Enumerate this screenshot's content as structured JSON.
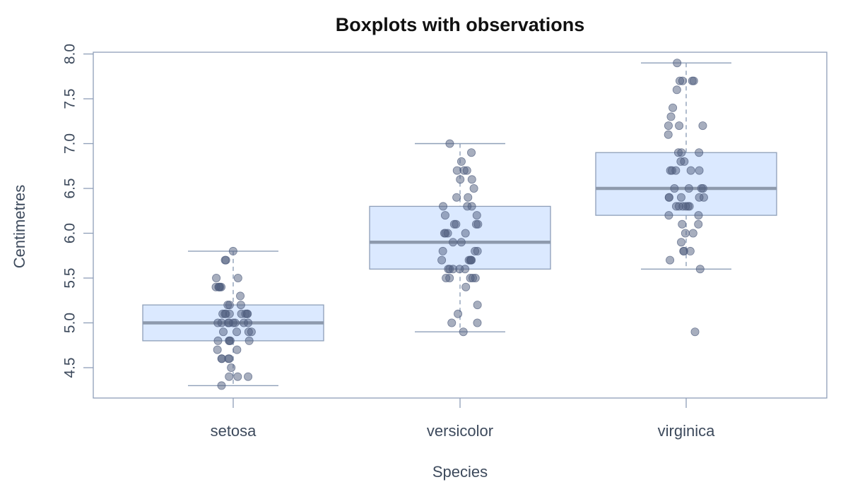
{
  "chart_data": {
    "type": "box",
    "title": "Boxplots with observations",
    "xlabel": "Species",
    "ylabel": "Centimetres",
    "categories": [
      "setosa",
      "versicolor",
      "virginica"
    ],
    "ylim": [
      4.15,
      8.05
    ],
    "yticks": [
      4.5,
      5.0,
      5.5,
      6.0,
      6.5,
      7.0,
      7.5,
      8.0
    ],
    "ytick_labels": [
      "4.5",
      "5.0",
      "5.5",
      "6.0",
      "6.5",
      "7.0",
      "7.5",
      "8.0"
    ],
    "grid": false,
    "boxes": [
      {
        "category": "setosa",
        "min": 4.3,
        "q1": 4.8,
        "median": 5.0,
        "q3": 5.2,
        "max": 5.8,
        "outliers": []
      },
      {
        "category": "versicolor",
        "min": 4.9,
        "q1": 5.6,
        "median": 5.9,
        "q3": 6.3,
        "max": 7.0,
        "outliers": []
      },
      {
        "category": "virginica",
        "min": 5.6,
        "q1": 6.2,
        "median": 6.5,
        "q3": 6.9,
        "max": 7.9,
        "outliers": [
          4.9
        ]
      }
    ],
    "observations": [
      {
        "category": "setosa",
        "values": [
          5.1,
          4.9,
          4.7,
          4.6,
          5.0,
          5.4,
          4.6,
          5.0,
          4.4,
          4.9,
          5.4,
          4.8,
          4.8,
          4.3,
          5.8,
          5.7,
          5.4,
          5.1,
          5.7,
          5.1,
          5.4,
          5.1,
          4.6,
          5.1,
          4.8,
          5.0,
          5.0,
          5.2,
          5.2,
          4.7,
          4.8,
          5.4,
          5.2,
          5.5,
          4.9,
          5.0,
          5.5,
          4.9,
          4.4,
          5.1,
          5.0,
          4.5,
          4.4,
          5.0,
          5.1,
          4.8,
          5.1,
          4.6,
          5.3,
          5.0
        ]
      },
      {
        "category": "versicolor",
        "values": [
          7.0,
          6.4,
          6.9,
          5.5,
          6.5,
          5.7,
          6.3,
          4.9,
          6.6,
          5.2,
          5.0,
          5.9,
          6.0,
          6.1,
          5.6,
          6.7,
          5.6,
          5.8,
          6.2,
          5.6,
          5.9,
          6.1,
          6.3,
          6.1,
          6.4,
          6.6,
          6.8,
          6.7,
          6.0,
          5.7,
          5.5,
          5.5,
          5.8,
          6.0,
          5.4,
          6.0,
          6.7,
          6.3,
          5.6,
          5.5,
          5.5,
          6.1,
          5.8,
          5.0,
          5.6,
          5.7,
          5.7,
          6.2,
          5.1,
          5.7
        ]
      },
      {
        "category": "virginica",
        "values": [
          6.3,
          5.8,
          7.1,
          6.3,
          6.5,
          7.6,
          4.9,
          7.3,
          6.7,
          7.2,
          6.5,
          6.4,
          6.8,
          5.7,
          5.8,
          6.4,
          6.5,
          7.7,
          7.7,
          6.0,
          6.9,
          5.6,
          7.7,
          6.3,
          6.7,
          7.2,
          6.2,
          6.1,
          6.4,
          7.2,
          7.4,
          7.9,
          6.4,
          6.3,
          6.1,
          7.7,
          6.3,
          6.4,
          6.0,
          6.9,
          6.7,
          6.9,
          5.8,
          6.8,
          6.7,
          6.7,
          6.3,
          6.5,
          6.2,
          5.9
        ]
      }
    ],
    "colors": {
      "box_fill": "#dbe9ff",
      "box_stroke": "#8e9fb8",
      "median": "#8e9aad",
      "whisker": "#8e9fb8",
      "point": "#4f5d7e",
      "frame": "#8e9fb8",
      "tick_label": "#3d4a5c"
    }
  }
}
